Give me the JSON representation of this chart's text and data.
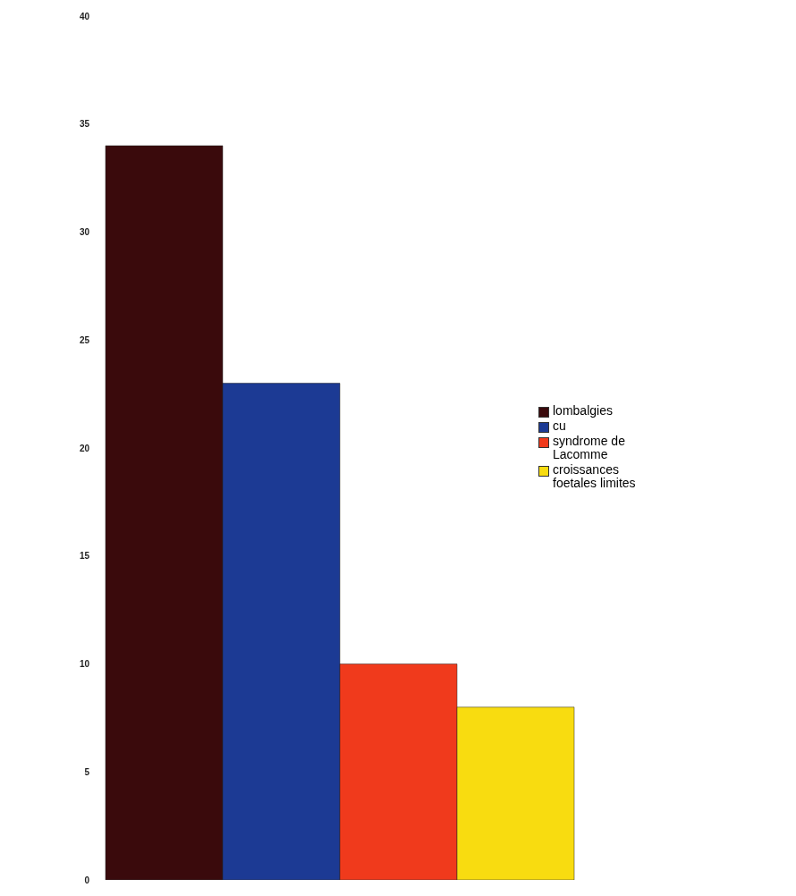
{
  "chart_data": {
    "type": "bar",
    "categories": [
      null
    ],
    "series": [
      {
        "name": "lombalgies",
        "color": "#3a0a0c",
        "values": [
          34
        ]
      },
      {
        "name": "cu",
        "color": "#1c3a94",
        "values": [
          23
        ]
      },
      {
        "name": "syndrome de Lacomme",
        "color": "#f03a1c",
        "values": [
          10
        ]
      },
      {
        "name": "croissances foetales limites",
        "color": "#f8dc10",
        "values": [
          8
        ]
      }
    ],
    "ylim": [
      0,
      40
    ],
    "yticks": [
      0,
      5,
      10,
      15,
      20,
      25,
      30,
      35,
      40
    ],
    "grid": false,
    "legend": "right"
  }
}
